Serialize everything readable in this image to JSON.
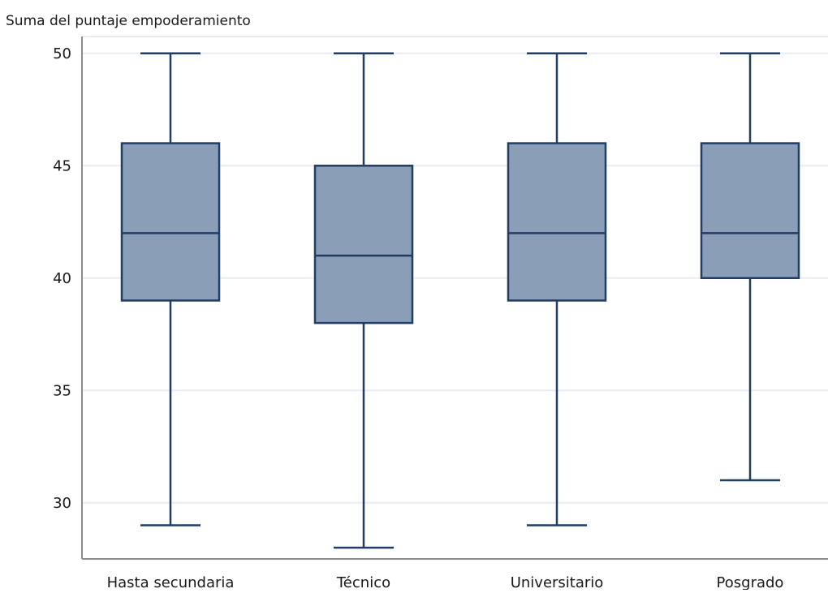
{
  "chart_data": {
    "type": "box",
    "title": "",
    "xlabel": "",
    "ylabel": "Suma del puntaje empoderamiento",
    "ylim": [
      27.5,
      50.75
    ],
    "yticks": [
      30,
      35,
      40,
      45,
      50
    ],
    "grid": true,
    "legend": "none",
    "categories": [
      "Hasta secundaria",
      "Técnico",
      "Universitario",
      "Posgrado"
    ],
    "boxes": [
      {
        "category": "Hasta secundaria",
        "min": 29,
        "q1": 39,
        "median": 42,
        "q3": 46,
        "max": 50
      },
      {
        "category": "Técnico",
        "min": 28,
        "q1": 38,
        "median": 41,
        "q3": 45,
        "max": 50
      },
      {
        "category": "Universitario",
        "min": 29,
        "q1": 39,
        "median": 42,
        "q3": 46,
        "max": 50
      },
      {
        "category": "Posgrado",
        "min": 31,
        "q1": 40,
        "median": 42,
        "q3": 46,
        "max": 50
      }
    ],
    "colors": {
      "box_fill": "#8a9fb7",
      "box_stroke": "#1f3d66",
      "grid": "#e9edf1",
      "axis": "#8c8c8c"
    }
  }
}
